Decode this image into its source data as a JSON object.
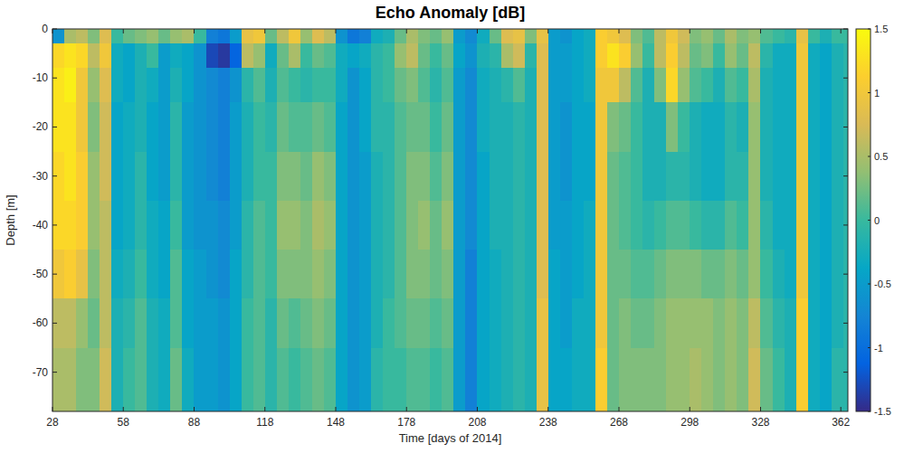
{
  "chart_data": {
    "type": "heatmap",
    "title": "Echo Anomaly [dB]",
    "x_label": "Time [days of 2014]",
    "y_label": "Depth [m]",
    "xlim": [
      28,
      365
    ],
    "ylim": [
      -78,
      0
    ],
    "xticks": [
      28,
      58,
      88,
      118,
      148,
      178,
      208,
      238,
      268,
      298,
      328,
      362
    ],
    "yticks": [
      0,
      -10,
      -20,
      -30,
      -40,
      -50,
      -60,
      -70
    ],
    "grid": false,
    "color_range": [
      -1.5,
      1.5
    ],
    "color_ticks": [
      1.5,
      1,
      0.5,
      0,
      -0.5,
      -1,
      -1.5
    ],
    "x_bins": [
      28,
      33,
      38,
      43,
      48,
      53,
      58,
      63,
      68,
      73,
      78,
      83,
      88,
      93,
      98,
      103,
      108,
      113,
      118,
      123,
      128,
      133,
      138,
      143,
      148,
      153,
      158,
      163,
      168,
      173,
      178,
      183,
      188,
      193,
      198,
      203,
      208,
      213,
      218,
      223,
      228,
      233,
      238,
      243,
      248,
      253,
      258,
      263,
      268,
      273,
      278,
      283,
      288,
      293,
      298,
      303,
      308,
      313,
      318,
      323,
      328,
      333,
      338,
      343,
      348,
      353,
      358,
      363,
      365
    ],
    "y_bins": [
      0,
      -3,
      -8,
      -15,
      -25,
      -35,
      -45,
      -55,
      -65,
      -78
    ],
    "values": [
      [
        -0.6,
        1.2,
        1.3,
        1.3,
        1.2,
        1.2,
        1.0,
        0.6,
        0.5
      ],
      [
        0.5,
        1.3,
        1.4,
        1.3,
        1.3,
        1.2,
        1.1,
        0.6,
        0.5
      ],
      [
        0.6,
        1.2,
        1.0,
        1.0,
        1.1,
        1.1,
        0.9,
        0.4,
        0.3
      ],
      [
        0.3,
        0.6,
        0.4,
        0.3,
        0.4,
        0.4,
        0.3,
        0.2,
        0.3
      ],
      [
        0.8,
        1.0,
        0.8,
        0.7,
        0.7,
        0.6,
        0.6,
        0.6,
        0.7
      ],
      [
        0.0,
        -0.3,
        -0.3,
        -0.4,
        -0.4,
        -0.4,
        -0.3,
        -0.2,
        -0.2
      ],
      [
        0.2,
        -0.4,
        -0.4,
        -0.3,
        -0.3,
        -0.3,
        -0.2,
        -0.1,
        0.0
      ],
      [
        0.3,
        -0.2,
        -0.2,
        -0.2,
        -0.1,
        -0.1,
        0.0,
        0.1,
        0.1
      ],
      [
        0.4,
        0.0,
        -0.3,
        -0.4,
        -0.4,
        -0.3,
        -0.3,
        -0.2,
        -0.2
      ],
      [
        0.2,
        -0.5,
        -0.5,
        -0.5,
        -0.5,
        -0.4,
        -0.4,
        -0.3,
        -0.3
      ],
      [
        0.4,
        -0.3,
        -0.2,
        -0.1,
        -0.1,
        0.0,
        0.1,
        0.1,
        0.2
      ],
      [
        0.5,
        -0.4,
        -0.4,
        -0.5,
        -0.5,
        -0.5,
        -0.4,
        -0.4,
        -0.3
      ],
      [
        0.0,
        -0.6,
        -0.6,
        -0.6,
        -0.6,
        -0.6,
        -0.5,
        -0.5,
        -0.5
      ],
      [
        -0.8,
        -1.3,
        -0.7,
        -0.7,
        -0.7,
        -0.6,
        -0.6,
        -0.5,
        -0.5
      ],
      [
        -0.9,
        -1.4,
        -0.8,
        -0.8,
        -0.8,
        -0.7,
        -0.7,
        -0.6,
        -0.6
      ],
      [
        -0.5,
        -1.1,
        -0.6,
        -0.5,
        -0.5,
        -0.5,
        -0.4,
        -0.4,
        -0.4
      ],
      [
        0.9,
        0.6,
        -0.1,
        -0.2,
        -0.2,
        -0.1,
        -0.1,
        0.0,
        0.0
      ],
      [
        1.0,
        0.4,
        0.1,
        0.0,
        0.0,
        0.1,
        0.1,
        0.1,
        0.1
      ],
      [
        0.2,
        -0.3,
        -0.2,
        -0.1,
        0.0,
        0.0,
        0.0,
        -0.1,
        -0.1
      ],
      [
        0.6,
        0.2,
        0.1,
        0.2,
        0.3,
        0.4,
        0.3,
        0.2,
        0.1
      ],
      [
        1.0,
        0.5,
        0.0,
        0.1,
        0.3,
        0.4,
        0.3,
        0.1,
        0.0
      ],
      [
        0.4,
        0.0,
        -0.1,
        0.1,
        0.2,
        0.3,
        0.3,
        0.2,
        0.1
      ],
      [
        0.8,
        0.2,
        0.0,
        0.2,
        0.4,
        0.5,
        0.4,
        0.3,
        0.2
      ],
      [
        0.6,
        0.1,
        0.0,
        0.1,
        0.3,
        0.4,
        0.3,
        0.2,
        0.1
      ],
      [
        -0.6,
        -0.3,
        -0.3,
        -0.4,
        -0.4,
        -0.4,
        -0.4,
        -0.4,
        -0.4
      ],
      [
        -0.9,
        -0.4,
        -0.6,
        -0.6,
        -0.6,
        -0.6,
        -0.6,
        -0.6,
        -0.6
      ],
      [
        -0.8,
        -0.3,
        -0.4,
        -0.4,
        -0.5,
        -0.5,
        -0.5,
        -0.5,
        -0.5
      ],
      [
        -0.3,
        -0.1,
        -0.1,
        -0.1,
        -0.2,
        -0.2,
        -0.2,
        -0.2,
        -0.1
      ],
      [
        -0.2,
        0.0,
        0.0,
        -0.1,
        -0.1,
        -0.1,
        -0.1,
        0.0,
        0.0
      ],
      [
        0.2,
        0.4,
        0.2,
        0.1,
        0.1,
        0.1,
        0.1,
        0.1,
        0.0
      ],
      [
        0.5,
        0.6,
        0.3,
        0.2,
        0.3,
        0.3,
        0.3,
        0.2,
        0.1
      ],
      [
        0.3,
        0.2,
        0.1,
        0.2,
        0.3,
        0.4,
        0.3,
        0.2,
        0.1
      ],
      [
        0.2,
        0.0,
        -0.1,
        0.0,
        0.1,
        0.2,
        0.2,
        0.1,
        0.0
      ],
      [
        0.4,
        0.2,
        0.1,
        0.2,
        0.3,
        0.4,
        0.3,
        0.2,
        0.1
      ],
      [
        -0.5,
        -0.4,
        -0.5,
        -0.5,
        -0.5,
        -0.5,
        -0.5,
        -0.5,
        -0.5
      ],
      [
        -0.7,
        -0.6,
        -0.7,
        -0.7,
        -0.7,
        -0.7,
        -0.8,
        -0.8,
        -0.8
      ],
      [
        -0.3,
        -0.2,
        -0.3,
        -0.3,
        -0.4,
        -0.4,
        -0.4,
        -0.4,
        -0.4
      ],
      [
        0.2,
        -0.1,
        -0.2,
        -0.2,
        -0.2,
        -0.2,
        -0.3,
        -0.3,
        -0.3
      ],
      [
        0.8,
        0.5,
        -0.1,
        -0.2,
        -0.2,
        -0.2,
        -0.2,
        -0.2,
        -0.2
      ],
      [
        0.9,
        0.7,
        0.1,
        -0.1,
        -0.1,
        -0.1,
        -0.1,
        -0.1,
        -0.1
      ],
      [
        0.3,
        -0.1,
        -0.2,
        -0.2,
        -0.2,
        -0.2,
        -0.2,
        -0.2,
        -0.2
      ],
      [
        0.9,
        0.8,
        0.8,
        0.8,
        0.8,
        0.8,
        0.8,
        0.9,
        0.9
      ],
      [
        -0.5,
        -0.5,
        -0.5,
        -0.5,
        -0.5,
        -0.5,
        -0.4,
        -0.4,
        -0.4
      ],
      [
        -0.6,
        -0.5,
        -0.5,
        -0.6,
        -0.6,
        -0.5,
        -0.5,
        -0.5,
        -0.4
      ],
      [
        -0.4,
        -0.4,
        -0.4,
        -0.4,
        -0.4,
        -0.4,
        -0.4,
        -0.3,
        -0.3
      ],
      [
        -0.3,
        -0.3,
        -0.3,
        -0.4,
        -0.4,
        -0.3,
        -0.3,
        -0.3,
        -0.3
      ],
      [
        1.1,
        1.1,
        1.0,
        1.0,
        1.0,
        1.0,
        1.0,
        1.0,
        1.1
      ],
      [
        1.0,
        1.3,
        1.0,
        0.3,
        0.2,
        0.2,
        0.2,
        0.2,
        0.2
      ],
      [
        0.8,
        1.1,
        0.6,
        0.2,
        0.1,
        0.1,
        0.2,
        0.3,
        0.3
      ],
      [
        0.3,
        0.4,
        0.1,
        0.0,
        0.0,
        0.0,
        0.1,
        0.2,
        0.3
      ],
      [
        0.1,
        0.0,
        -0.2,
        -0.2,
        -0.2,
        -0.1,
        0.1,
        0.2,
        0.3
      ],
      [
        0.6,
        0.6,
        0.3,
        -0.2,
        -0.2,
        0.0,
        0.2,
        0.3,
        0.3
      ],
      [
        1.0,
        1.1,
        1.2,
        0.3,
        -0.1,
        0.1,
        0.3,
        0.4,
        0.4
      ],
      [
        0.7,
        0.6,
        0.4,
        0.0,
        -0.1,
        0.1,
        0.3,
        0.4,
        0.4
      ],
      [
        0.3,
        0.2,
        0.1,
        -0.2,
        -0.2,
        0.0,
        0.3,
        0.4,
        0.5
      ],
      [
        0.4,
        0.3,
        0.0,
        -0.3,
        -0.3,
        -0.1,
        0.2,
        0.4,
        0.4
      ],
      [
        0.2,
        0.0,
        -0.2,
        -0.3,
        -0.3,
        -0.1,
        0.2,
        0.3,
        0.3
      ],
      [
        0.5,
        0.4,
        0.1,
        -0.1,
        -0.1,
        0.1,
        0.3,
        0.4,
        0.4
      ],
      [
        0.3,
        0.2,
        0.0,
        -0.2,
        -0.1,
        0.0,
        0.2,
        0.3,
        0.3
      ],
      [
        0.4,
        0.6,
        0.5,
        0.4,
        0.4,
        0.4,
        0.4,
        0.6,
        0.7
      ],
      [
        0.1,
        -0.1,
        -0.2,
        -0.2,
        -0.2,
        -0.1,
        0.0,
        0.1,
        0.2
      ],
      [
        0.0,
        -0.3,
        -0.3,
        -0.3,
        -0.3,
        -0.3,
        -0.2,
        -0.1,
        0.0
      ],
      [
        -0.1,
        -0.3,
        -0.3,
        -0.3,
        -0.3,
        -0.3,
        -0.3,
        -0.2,
        -0.2
      ],
      [
        0.9,
        1.0,
        1.0,
        1.0,
        1.0,
        1.0,
        1.0,
        1.1,
        1.1
      ],
      [
        0.0,
        -0.3,
        -0.3,
        -0.3,
        -0.3,
        -0.3,
        -0.3,
        -0.3,
        -0.3
      ],
      [
        -0.2,
        -0.4,
        -0.4,
        -0.4,
        -0.4,
        -0.4,
        -0.4,
        -0.4,
        -0.4
      ],
      [
        0.0,
        -0.2,
        -0.2,
        -0.2,
        -0.2,
        -0.2,
        -0.2,
        -0.2,
        -0.1
      ],
      [
        0.0,
        -0.1,
        -0.1,
        -0.1,
        -0.1,
        -0.1,
        -0.1,
        -0.1,
        -0.1
      ]
    ]
  }
}
